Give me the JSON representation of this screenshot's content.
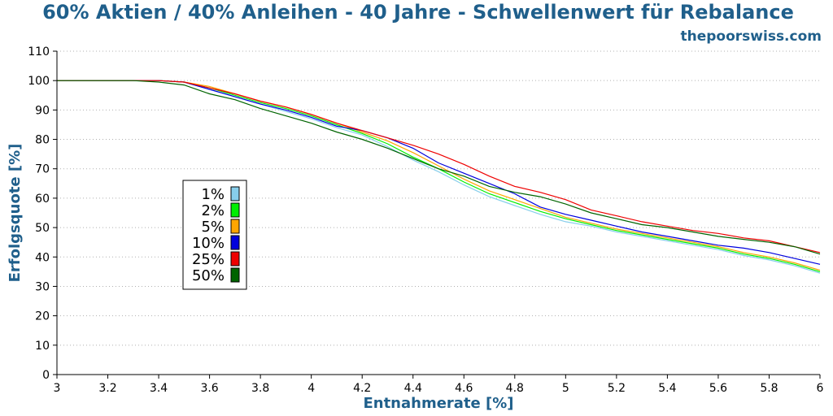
{
  "chart_data": {
    "type": "line",
    "title": "60% Aktien / 40% Anleihen - 40 Jahre - Schwellenwert für Rebalance",
    "watermark": "thepoorswiss.com",
    "xlabel": "Entnahmerate [%]",
    "ylabel": "Erfolgsquote [%]",
    "xlim": [
      3,
      6
    ],
    "ylim": [
      0,
      110
    ],
    "x_ticks": [
      "3",
      "3.2",
      "3.4",
      "3.6",
      "3.8",
      "4",
      "4.2",
      "4.4",
      "4.6",
      "4.8",
      "5",
      "5.2",
      "5.4",
      "5.6",
      "5.8",
      "6"
    ],
    "y_ticks": [
      "0",
      "10",
      "20",
      "30",
      "40",
      "50",
      "60",
      "70",
      "80",
      "90",
      "100",
      "110"
    ],
    "grid": "horizontal",
    "legend_position": "left-center",
    "x": [
      3.0,
      3.1,
      3.2,
      3.3,
      3.4,
      3.5,
      3.6,
      3.7,
      3.8,
      3.9,
      4.0,
      4.1,
      4.2,
      4.3,
      4.4,
      4.5,
      4.6,
      4.7,
      4.8,
      4.9,
      5.0,
      5.1,
      5.2,
      5.3,
      5.4,
      5.5,
      5.6,
      5.7,
      5.8,
      5.9,
      6.0
    ],
    "series": [
      {
        "name": "1%",
        "color": "#87ceeb",
        "values": [
          100,
          100,
          100,
          100,
          100,
          99.5,
          97,
          94.5,
          92,
          89.5,
          87,
          84,
          81.5,
          77.5,
          73,
          69,
          64.5,
          60.5,
          57.5,
          54.5,
          52,
          50.5,
          48.5,
          47,
          45.5,
          44,
          42.5,
          40.5,
          39,
          37,
          34.5
        ]
      },
      {
        "name": "2%",
        "color": "#00ee00",
        "values": [
          100,
          100,
          100,
          100,
          100,
          99.5,
          97.5,
          95,
          92.5,
          90.5,
          88,
          85,
          82,
          78.5,
          74,
          70,
          65.5,
          61.5,
          58.5,
          55.5,
          53,
          51,
          49,
          47.5,
          46,
          44.5,
          43,
          41,
          39.5,
          37.5,
          35
        ]
      },
      {
        "name": "5%",
        "color": "#ffa500",
        "values": [
          100,
          100,
          100,
          100,
          100,
          99.5,
          98,
          95.5,
          93,
          91,
          88.5,
          85.5,
          82.5,
          79.5,
          75.5,
          71,
          66.5,
          62.5,
          59.5,
          56.5,
          53.5,
          51.5,
          49.5,
          48,
          46.5,
          45,
          43.5,
          41.5,
          40,
          38,
          35.5
        ]
      },
      {
        "name": "10%",
        "color": "#0000dd",
        "values": [
          100,
          100,
          100,
          100,
          100,
          99.5,
          97,
          94.5,
          92,
          90,
          87.5,
          84.5,
          83,
          80.5,
          77,
          72,
          68.5,
          65,
          61.5,
          57,
          54.5,
          52.5,
          50.5,
          48.5,
          47,
          45.5,
          44,
          43,
          41.5,
          39.5,
          37.5
        ]
      },
      {
        "name": "25%",
        "color": "#ee0000",
        "values": [
          100,
          100,
          100,
          100,
          100,
          99.5,
          97.5,
          95.5,
          93,
          91,
          88.5,
          85.5,
          83,
          80.5,
          78,
          75,
          71.5,
          67.5,
          64,
          62,
          59.5,
          56,
          54,
          52,
          50.5,
          49,
          48,
          46.5,
          45.5,
          43.5,
          41.5
        ]
      },
      {
        "name": "50%",
        "color": "#006400",
        "values": [
          100,
          100,
          100,
          100,
          99.5,
          98.5,
          95.5,
          93.5,
          90.5,
          88,
          85.5,
          82.5,
          80,
          77,
          73.5,
          70,
          67.5,
          64,
          62,
          60.5,
          58,
          55,
          53,
          51,
          50,
          48.5,
          47,
          46,
          45,
          43.5,
          41
        ]
      }
    ]
  }
}
